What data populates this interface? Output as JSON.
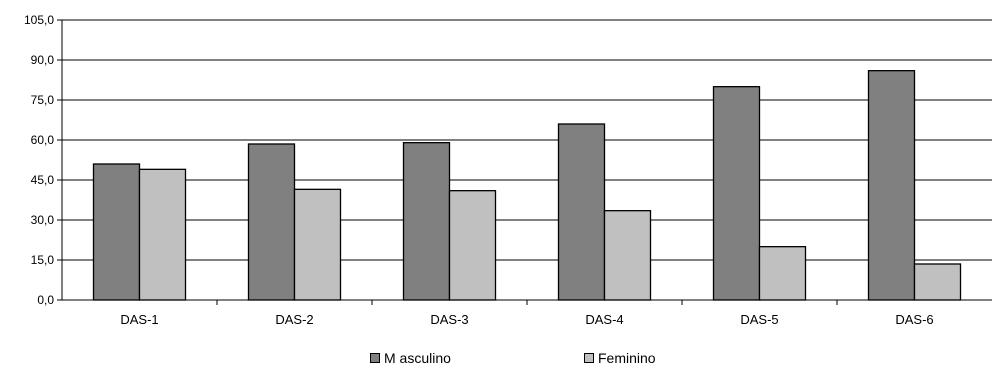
{
  "chart_data": {
    "type": "bar",
    "title": "",
    "xlabel": "",
    "ylabel": "",
    "categories": [
      "DAS-1",
      "DAS-2",
      "DAS-3",
      "DAS-4",
      "DAS-5",
      "DAS-6"
    ],
    "series": [
      {
        "name": "Masculino",
        "legend_label": "M asculino",
        "color": "#808080",
        "values": [
          51.0,
          58.5,
          59.0,
          66.0,
          80.0,
          86.0
        ]
      },
      {
        "name": "Feminino",
        "legend_label": "Feminino",
        "color": "#c0c0c0",
        "values": [
          49.0,
          41.5,
          41.0,
          33.5,
          20.0,
          13.5
        ]
      }
    ],
    "ylim": [
      0,
      105
    ],
    "yticks": [
      0,
      15,
      30,
      45,
      60,
      75,
      90,
      105
    ],
    "ytick_labels": [
      "0,0",
      "15,0",
      "30,0",
      "45,0",
      "60,0",
      "75,0",
      "90,0",
      "105,0"
    ],
    "grid": true,
    "legend_position": "bottom"
  }
}
